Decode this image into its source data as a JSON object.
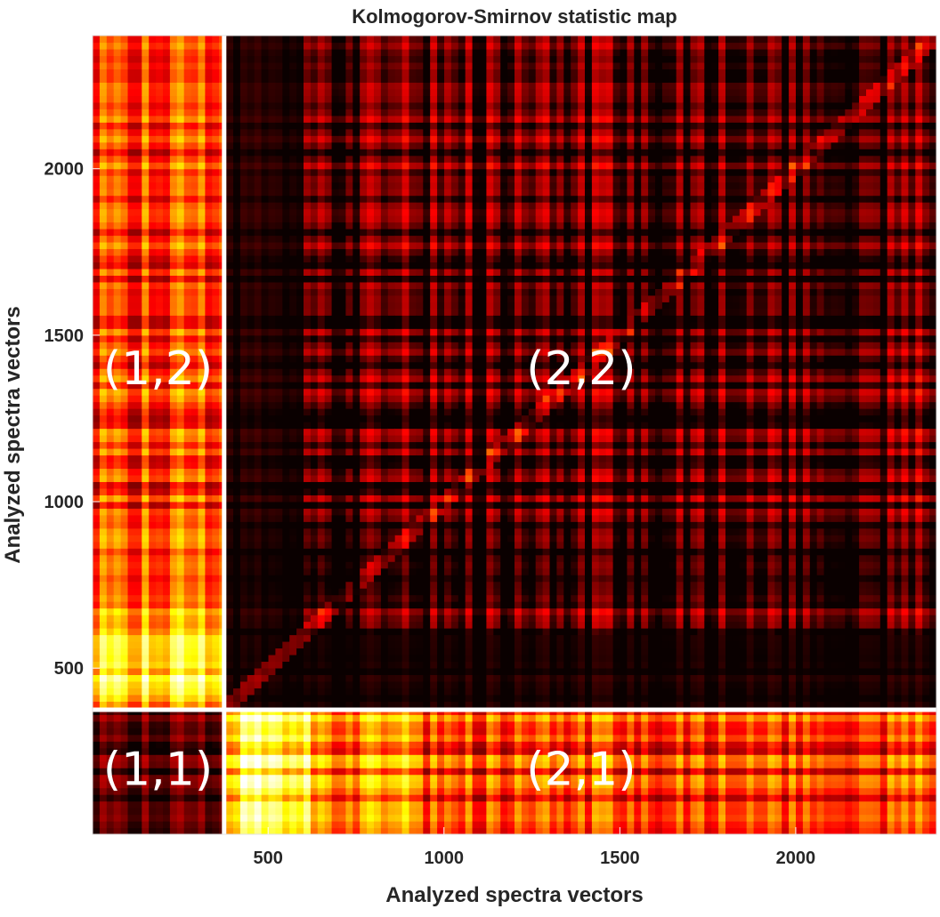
{
  "chart_data": {
    "type": "heatmap",
    "title": "Kolmogorov-Smirnov statistic map",
    "xlabel": "Analyzed spectra vectors",
    "ylabel": "Analyzed spectra vectors",
    "xlim": [
      1,
      2400
    ],
    "ylim": [
      1,
      2400
    ],
    "x_ticks": [
      500,
      1000,
      1500,
      2000
    ],
    "y_ticks": [
      500,
      1000,
      1500,
      2000
    ],
    "y_axis_direction": "up",
    "group_boundary": 375,
    "colormap": "hot",
    "grid": false,
    "legend": "none",
    "block_labels": [
      {
        "label": "(1,2)",
        "x": 187,
        "y": 1390,
        "intensity": "high"
      },
      {
        "label": "(2,2)",
        "x": 1390,
        "y": 1390,
        "intensity": "low"
      },
      {
        "label": "(1,1)",
        "x": 187,
        "y": 187,
        "intensity": "low"
      },
      {
        "label": "(2,1)",
        "x": 1390,
        "y": 187,
        "intensity": "high"
      }
    ],
    "separator_color": "#ffffff"
  }
}
